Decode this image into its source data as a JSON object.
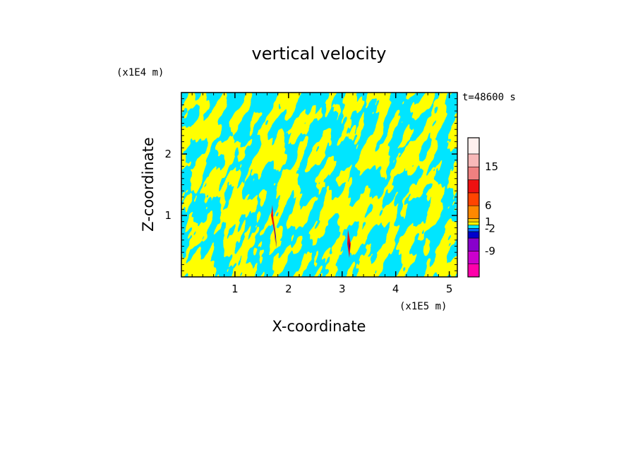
{
  "chart_data": {
    "type": "heatmap",
    "title": "vertical velocity",
    "time_label": "t=48600 s",
    "xlabel": "X-coordinate",
    "ylabel": "Z-coordinate",
    "x_scale_label": "(x1E5 m)",
    "y_scale_label": "(x1E4 m)",
    "xlim": [
      0,
      5.15
    ],
    "ylim": [
      0,
      3.0
    ],
    "x_ticks": [
      {
        "value": 1,
        "label": "1"
      },
      {
        "value": 2,
        "label": "2"
      },
      {
        "value": 3,
        "label": "3"
      },
      {
        "value": 4,
        "label": "4"
      },
      {
        "value": 5,
        "label": "5"
      }
    ],
    "y_ticks": [
      {
        "value": 1,
        "label": "1"
      },
      {
        "value": 2,
        "label": "2"
      }
    ],
    "colorbar": {
      "levels": [
        {
          "color": "#ff00aa"
        },
        {
          "color": "#cc00cc"
        },
        {
          "color": "#8800cc"
        },
        {
          "color": "#0000cc"
        },
        {
          "color": "#0066ff"
        },
        {
          "color": "#00e5ff"
        },
        {
          "color": "#ffff00"
        },
        {
          "color": "#ffcc00"
        },
        {
          "color": "#ff8800"
        },
        {
          "color": "#ff4400"
        },
        {
          "color": "#ee1111"
        },
        {
          "color": "#f08080"
        },
        {
          "color": "#f8b8b8"
        },
        {
          "color": "#fff0ee"
        }
      ],
      "labels": [
        "-9",
        "-2",
        "1",
        "6",
        "15"
      ]
    },
    "colors": {
      "positive": "#ffff00",
      "negative": "#00e5ff",
      "strong_up": "#ee1111",
      "strong_down": "#0000cc"
    }
  }
}
